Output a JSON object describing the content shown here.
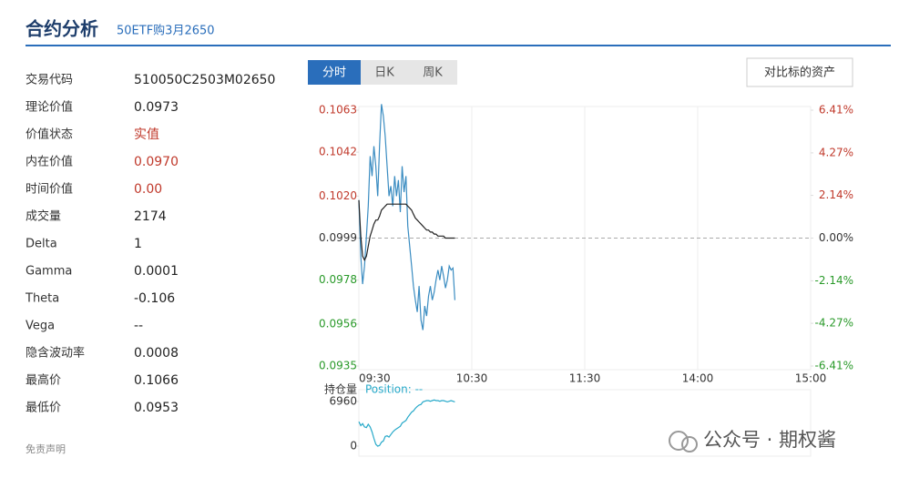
{
  "header": {
    "title": "合约分析",
    "subtitle": "50ETF购3月2650"
  },
  "fields": [
    {
      "label": "交易代码",
      "value": "510050C2503M02650"
    },
    {
      "label": "理论价值",
      "value": "0.0973"
    },
    {
      "label": "价值状态",
      "value": "实值",
      "color": "#c0392b"
    },
    {
      "label": "内在价值",
      "value": "0.0970",
      "color": "#c0392b"
    },
    {
      "label": "时间价值",
      "value": "0.00",
      "color": "#c0392b"
    },
    {
      "label": "成交量",
      "value": "2174"
    },
    {
      "label": "Delta",
      "value": "1"
    },
    {
      "label": "Gamma",
      "value": "0.0001"
    },
    {
      "label": "Theta",
      "value": "-0.106"
    },
    {
      "label": "Vega",
      "value": "--"
    },
    {
      "label": "隐含波动率",
      "value": "0.0008"
    },
    {
      "label": "最高价",
      "value": "0.1066"
    },
    {
      "label": "最低价",
      "value": "0.0953"
    }
  ],
  "tabs": [
    "分时",
    "日K",
    "周K"
  ],
  "compare_button": "对比标的资产",
  "disclaimer": "免责声明",
  "watermark": "公众号 · 期权酱",
  "chart_data": [
    {
      "type": "line",
      "x": [
        0,
        1,
        2,
        3,
        4,
        5,
        6,
        7,
        8,
        9,
        10,
        11,
        12,
        13,
        14,
        15,
        16,
        17,
        18,
        19,
        20,
        21,
        22,
        23,
        24,
        25,
        26,
        27,
        28,
        29,
        30,
        31,
        32,
        33,
        34,
        35,
        36,
        37,
        38,
        39,
        40,
        41,
        42,
        43,
        44,
        45,
        46,
        47,
        48,
        49,
        50,
        51
      ],
      "xlim": [
        0,
        240
      ],
      "xticks": [
        {
          "value": 0,
          "label": "09:30"
        },
        {
          "value": 60,
          "label": "10:30"
        },
        {
          "value": 120,
          "label": "11:30"
        },
        {
          "value": 180,
          "label": "14:00"
        },
        {
          "value": 240,
          "label": "15:00"
        }
      ],
      "ylim": [
        0.0935,
        0.1063
      ],
      "yticks": [
        0.1063,
        0.1042,
        {
          "value": 0.102,
          "label": "0.1020"
        },
        0.0999,
        0.0978,
        0.0956,
        0.0935
      ],
      "y2lim": [
        -6.41,
        6.41
      ],
      "y2ticks": [
        {
          "value": 6.41,
          "label": "6.41%"
        },
        {
          "value": 4.27,
          "label": "4.27%"
        },
        {
          "value": 2.14,
          "label": "2.14%"
        },
        {
          "value": 0,
          "label": "0.00%"
        },
        {
          "value": -2.14,
          "label": "-2.14%"
        },
        {
          "value": -4.27,
          "label": "-4.27%"
        },
        {
          "value": -6.41,
          "label": "-6.41%"
        }
      ],
      "reference_line": 0.0999,
      "up_color": "#c0392b",
      "down_color": "#2a9a2a",
      "series": [
        {
          "color": "#3a8cc1",
          "values": [
            0.1018,
            0.099,
            0.0976,
            0.0985,
            0.1,
            0.1015,
            0.104,
            0.103,
            0.1045,
            0.1035,
            0.102,
            0.1045,
            0.1066,
            0.106,
            0.105,
            0.1035,
            0.102,
            0.1025,
            0.1015,
            0.103,
            0.102,
            0.1028,
            0.1012,
            0.1035,
            0.1022,
            0.103,
            0.1005,
            0.0995,
            0.0985,
            0.0975,
            0.0968,
            0.0962,
            0.0975,
            0.0958,
            0.0953,
            0.0965,
            0.096,
            0.097,
            0.0975,
            0.0968,
            0.0972,
            0.0978,
            0.0983,
            0.0978,
            0.0985,
            0.098,
            0.0974,
            0.0978,
            0.0985,
            0.0983,
            0.0984,
            0.0968
          ]
        },
        {
          "color": "#222222",
          "values": [
            0.1018,
            0.1,
            0.099,
            0.0988,
            0.099,
            0.0995,
            0.1,
            0.1003,
            0.1006,
            0.1008,
            0.1008,
            0.101,
            0.1013,
            0.1014,
            0.1015,
            0.1016,
            0.1016,
            0.1016,
            0.1016,
            0.1016,
            0.1016,
            0.1016,
            0.1016,
            0.1016,
            0.1016,
            0.1016,
            0.1015,
            0.1014,
            0.1013,
            0.1011,
            0.1009,
            0.1008,
            0.1007,
            0.1006,
            0.1005,
            0.1004,
            0.1003,
            0.1003,
            0.1002,
            0.1002,
            0.1001,
            0.1001,
            0.1,
            0.1,
            0.1,
            0.1,
            0.0999,
            0.0999,
            0.0999,
            0.0999,
            0.0999,
            0.0999
          ]
        }
      ]
    },
    {
      "type": "line",
      "title": "持仓量",
      "x": [
        0,
        1,
        2,
        3,
        4,
        5,
        6,
        7,
        8,
        9,
        10,
        11,
        12,
        13,
        14,
        15,
        16,
        17,
        18,
        19,
        20,
        21,
        22,
        23,
        24,
        25,
        26,
        27,
        28,
        29,
        30,
        31,
        32,
        33,
        34,
        35,
        36,
        37,
        38,
        39,
        40,
        41,
        42,
        43,
        44,
        45,
        46,
        47,
        48,
        49,
        50,
        51
      ],
      "xlim": [
        0,
        240
      ],
      "ylim": [
        -1000,
        8240
      ],
      "yticks": [
        6960,
        0
      ],
      "series": [
        {
          "name": "Position: --",
          "color": "#27a9c9",
          "values": [
            3800,
            3200,
            3500,
            3000,
            2900,
            3400,
            3000,
            2200,
            1200,
            300,
            0,
            100,
            600,
            800,
            1500,
            1600,
            1400,
            1800,
            2200,
            2500,
            2700,
            2900,
            3100,
            3600,
            3800,
            4000,
            4500,
            4900,
            5300,
            5500,
            5900,
            6200,
            6400,
            6500,
            6900,
            7000,
            7100,
            7100,
            7000,
            7100,
            7200,
            7100,
            7100,
            7000,
            7100,
            7100,
            7000,
            6900,
            7000,
            7100,
            7000,
            6900
          ]
        }
      ]
    }
  ]
}
